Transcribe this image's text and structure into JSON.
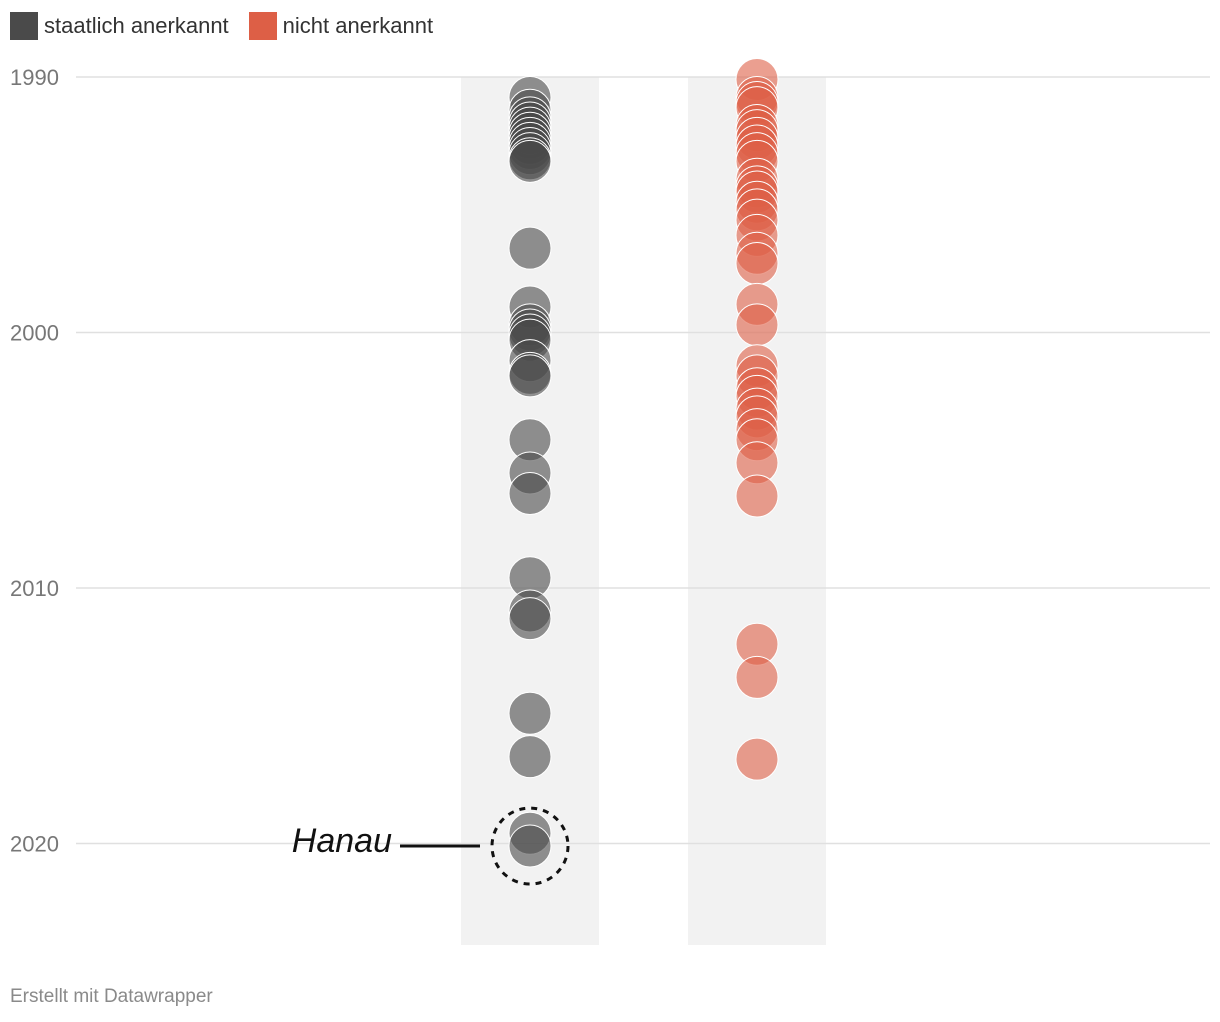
{
  "legend": [
    {
      "label": "staatlich anerkannt",
      "color": "#4a4a4a"
    },
    {
      "label": "nicht anerkannt",
      "color": "#dd5f46"
    }
  ],
  "footer": "Erstellt mit Datawrapper",
  "chart_data": {
    "type": "scatter",
    "y_axis": {
      "ticks": [
        1990,
        2000,
        2010,
        2020
      ],
      "range": [
        1990,
        2023.5
      ],
      "reversed": true,
      "grid": true
    },
    "annotation": {
      "text": "Hanau",
      "year": 2020.1,
      "series": 0
    },
    "series": [
      {
        "name": "staatlich anerkannt",
        "color": "#4a4a4a",
        "years": [
          1990.8,
          1991.3,
          1991.6,
          1991.8,
          1992.0,
          1992.2,
          1992.4,
          1992.6,
          1992.8,
          1993.0,
          1993.2,
          1993.3,
          1996.7,
          1999.0,
          1999.7,
          1999.9,
          2000.1,
          2000.3,
          2001.1,
          2001.6,
          2001.7,
          2004.2,
          2005.5,
          2006.3,
          2009.6,
          2010.9,
          2011.2,
          2014.9,
          2016.6,
          2019.6,
          2020.1
        ]
      },
      {
        "name": "nicht anerkannt",
        "color": "#dd5f46",
        "years": [
          1990.1,
          1990.8,
          1991.0,
          1991.2,
          1991.9,
          1992.1,
          1992.4,
          1992.7,
          1993.0,
          1993.3,
          1994.0,
          1994.3,
          1994.5,
          1994.9,
          1995.2,
          1995.6,
          1996.2,
          1996.9,
          1997.3,
          1998.9,
          1999.7,
          2001.3,
          2001.7,
          2002.2,
          2002.5,
          2003.0,
          2003.3,
          2003.8,
          2004.2,
          2005.1,
          2006.4,
          2012.2,
          2013.5,
          2016.7
        ]
      }
    ]
  }
}
